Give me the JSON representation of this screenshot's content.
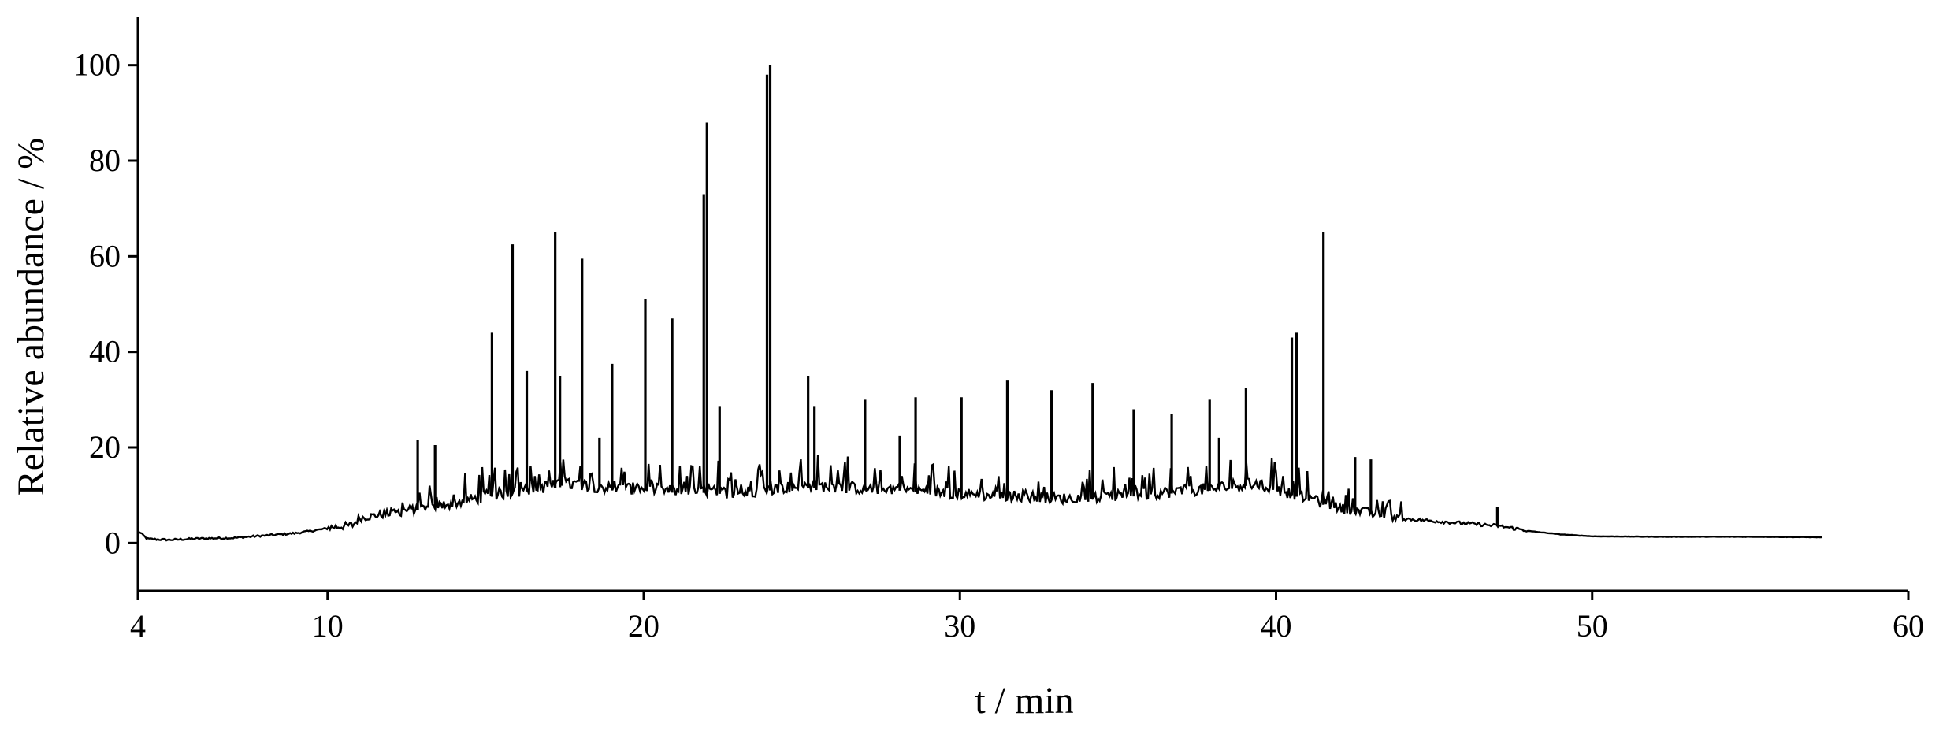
{
  "chart_data": {
    "type": "line",
    "title": "",
    "xlabel": "t / min",
    "ylabel": "Relative abundance / %",
    "xlim": [
      4,
      60
    ],
    "ylim": [
      -10,
      110
    ],
    "x_ticks": [
      4,
      10,
      20,
      30,
      40,
      50,
      60
    ],
    "y_ticks": [
      0,
      20,
      40,
      60,
      80,
      100
    ],
    "grid": false,
    "legend": "none",
    "series": [
      {
        "baseline": [
          [
            4.0,
            2.5
          ],
          [
            4.3,
            0.8
          ],
          [
            5.0,
            0.6
          ],
          [
            6.0,
            0.9
          ],
          [
            7.0,
            1.0
          ],
          [
            8.0,
            1.5
          ],
          [
            9.0,
            2.0
          ],
          [
            10.0,
            3.0
          ],
          [
            10.8,
            3.5
          ],
          [
            11.0,
            5.0
          ],
          [
            12.0,
            6.0
          ],
          [
            13.0,
            7.0
          ],
          [
            14.0,
            8.0
          ],
          [
            15.0,
            9.5
          ],
          [
            16.0,
            10.5
          ],
          [
            17.0,
            11.5
          ],
          [
            18.0,
            12.0
          ],
          [
            19.0,
            11.0
          ],
          [
            20.0,
            11.0
          ],
          [
            21.0,
            10.5
          ],
          [
            22.0,
            10.5
          ],
          [
            23.0,
            10.0
          ],
          [
            24.0,
            11.0
          ],
          [
            25.0,
            11.5
          ],
          [
            26.0,
            11.5
          ],
          [
            27.0,
            11.0
          ],
          [
            28.0,
            11.0
          ],
          [
            29.0,
            10.5
          ],
          [
            30.0,
            10.0
          ],
          [
            31.0,
            9.5
          ],
          [
            32.0,
            9.5
          ],
          [
            33.0,
            9.0
          ],
          [
            34.0,
            9.0
          ],
          [
            35.0,
            9.5
          ],
          [
            36.0,
            10.0
          ],
          [
            37.0,
            10.5
          ],
          [
            38.0,
            11.0
          ],
          [
            39.0,
            12.0
          ],
          [
            40.0,
            11.0
          ],
          [
            41.0,
            9.0
          ],
          [
            42.0,
            7.0
          ],
          [
            43.0,
            6.0
          ],
          [
            44.0,
            5.0
          ],
          [
            45.0,
            4.5
          ],
          [
            46.0,
            4.0
          ],
          [
            47.0,
            3.5
          ],
          [
            48.0,
            2.5
          ],
          [
            49.0,
            1.8
          ],
          [
            50.0,
            1.4
          ],
          [
            52.0,
            1.3
          ],
          [
            55.0,
            1.3
          ],
          [
            57.3,
            1.2
          ]
        ],
        "peaks": [
          [
            12.85,
            21.5
          ],
          [
            13.4,
            20.5
          ],
          [
            15.2,
            44
          ],
          [
            15.85,
            62.5
          ],
          [
            16.3,
            36
          ],
          [
            17.2,
            65
          ],
          [
            17.35,
            35
          ],
          [
            18.05,
            59.5
          ],
          [
            18.6,
            22
          ],
          [
            19.0,
            37.5
          ],
          [
            20.05,
            51
          ],
          [
            20.9,
            47
          ],
          [
            21.9,
            73
          ],
          [
            22.0,
            88
          ],
          [
            22.4,
            28.5
          ],
          [
            23.9,
            98
          ],
          [
            24.0,
            100
          ],
          [
            25.2,
            35
          ],
          [
            25.4,
            28.5
          ],
          [
            27.0,
            30
          ],
          [
            28.1,
            22.5
          ],
          [
            28.6,
            30.5
          ],
          [
            30.05,
            30.5
          ],
          [
            31.5,
            34
          ],
          [
            32.9,
            32
          ],
          [
            34.2,
            33.5
          ],
          [
            35.5,
            28
          ],
          [
            36.7,
            27
          ],
          [
            37.9,
            30
          ],
          [
            38.2,
            22
          ],
          [
            39.05,
            32.5
          ],
          [
            40.5,
            43
          ],
          [
            40.65,
            44
          ],
          [
            41.5,
            65
          ],
          [
            42.5,
            18
          ],
          [
            43.0,
            17.5
          ],
          [
            47.0,
            7.5
          ]
        ]
      }
    ]
  }
}
